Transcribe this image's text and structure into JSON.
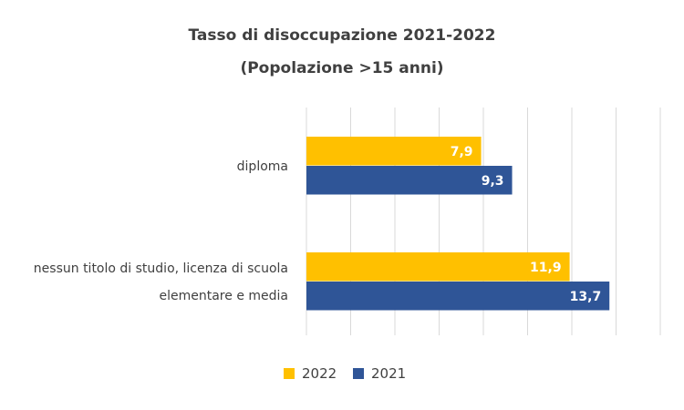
{
  "chart_data": {
    "type": "bar",
    "orientation": "horizontal",
    "title": "Tasso di disoccupazione 2021-2022",
    "subtitle": "(Popolazione >15 anni)",
    "categories": [
      "diploma",
      "nessun titolo di studio, licenza di scuola elementare e media"
    ],
    "category_lines": [
      [
        "diploma"
      ],
      [
        "nessun titolo di studio, licenza di scuola",
        "elementare e media"
      ]
    ],
    "series": [
      {
        "name": "2022",
        "color": "#FFC000",
        "values": [
          7.9,
          11.9
        ],
        "labels": [
          "7,9",
          "11,9"
        ]
      },
      {
        "name": "2021",
        "color": "#2F5597",
        "values": [
          9.3,
          13.7
        ],
        "labels": [
          "9,3",
          "13,7"
        ]
      }
    ],
    "xlim": [
      0,
      16
    ],
    "grid": true,
    "legend_position": "bottom"
  }
}
